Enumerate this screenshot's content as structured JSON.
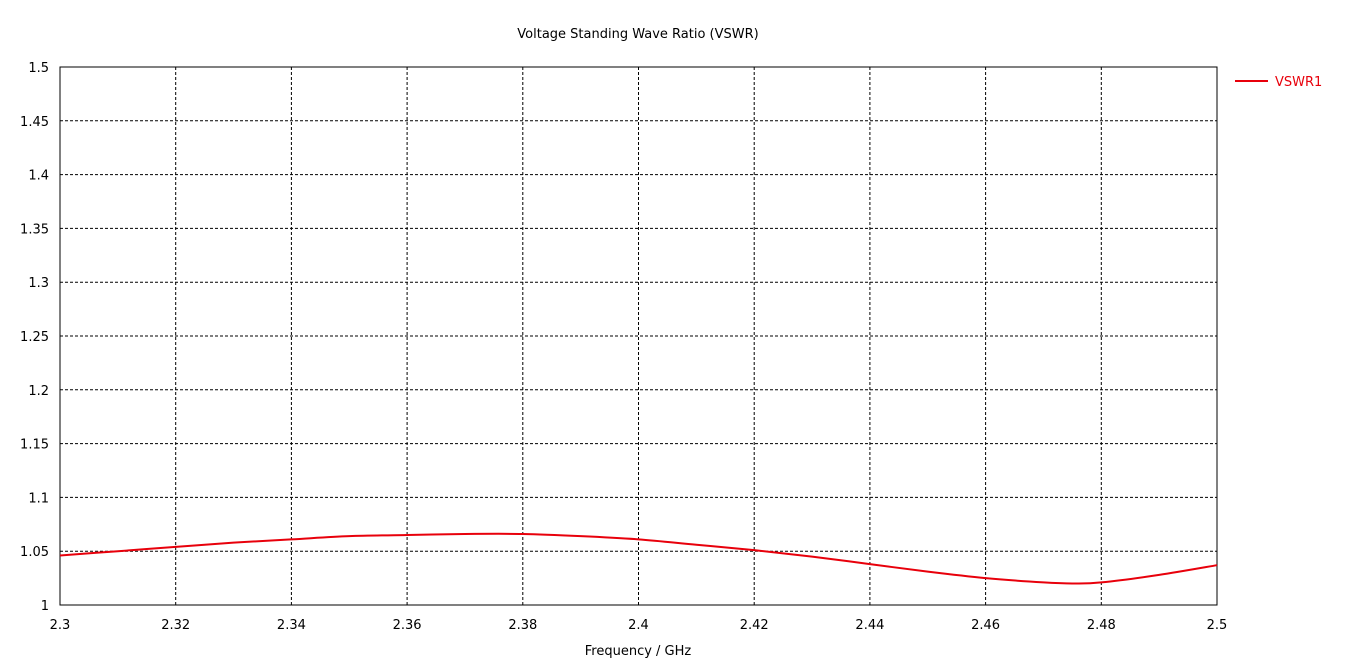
{
  "chart_data": {
    "type": "line",
    "title": "Voltage Standing Wave Ratio (VSWR)",
    "xlabel": "Frequency / GHz",
    "ylabel": "",
    "xlim": [
      2.3,
      2.5
    ],
    "ylim": [
      1,
      1.5
    ],
    "grid": true,
    "legend_position": "top-right",
    "x_ticks": [
      "2.3",
      "2.32",
      "2.34",
      "2.36",
      "2.38",
      "2.4",
      "2.42",
      "2.44",
      "2.46",
      "2.48",
      "2.5"
    ],
    "y_ticks": [
      "1",
      "1.05",
      "1.1",
      "1.15",
      "1.2",
      "1.25",
      "1.3",
      "1.35",
      "1.4",
      "1.45",
      "1.5"
    ],
    "series": [
      {
        "name": "VSWR1",
        "color": "#e8000b",
        "x": [
          2.3,
          2.31,
          2.32,
          2.33,
          2.34,
          2.35,
          2.36,
          2.37,
          2.38,
          2.39,
          2.4,
          2.41,
          2.42,
          2.43,
          2.44,
          2.45,
          2.46,
          2.47,
          2.475,
          2.48,
          2.49,
          2.5
        ],
        "y": [
          1.046,
          1.05,
          1.054,
          1.058,
          1.061,
          1.064,
          1.065,
          1.066,
          1.066,
          1.064,
          1.061,
          1.056,
          1.051,
          1.045,
          1.038,
          1.031,
          1.025,
          1.021,
          1.02,
          1.021,
          1.028,
          1.037
        ]
      }
    ]
  }
}
